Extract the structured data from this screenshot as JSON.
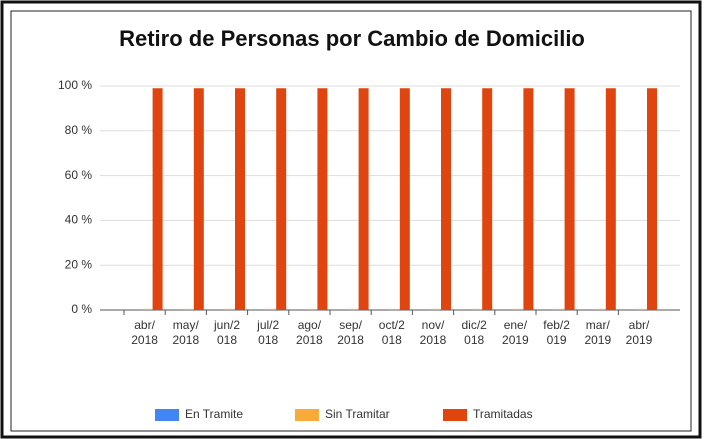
{
  "chart_data": {
    "type": "bar",
    "title": "Retiro de Personas por Cambio de Domicilio",
    "categories": [
      "abr/2018",
      "may/2018",
      "jun/2018",
      "jul/2018",
      "ago/2018",
      "sep/2018",
      "oct/2018",
      "nov/2018",
      "dic/2018",
      "ene/2019",
      "feb/2019",
      "mar/2019",
      "abr/2019"
    ],
    "series": [
      {
        "name": "En Tramite",
        "color": "#4285f4",
        "values": [
          0,
          0,
          0,
          0,
          0,
          0,
          0,
          0,
          0,
          0,
          0,
          0,
          0
        ]
      },
      {
        "name": "Sin Tramitar",
        "color": "#f9ab3a",
        "values": [
          0.5,
          0.5,
          0.5,
          0.5,
          0.5,
          0.5,
          0.5,
          0.5,
          0.5,
          0.5,
          0.5,
          0.5,
          0.5
        ]
      },
      {
        "name": "Tramitadas",
        "color": "#e0450f",
        "values": [
          99,
          99,
          99,
          99,
          99,
          99,
          99,
          99,
          99,
          99,
          99,
          99,
          99
        ]
      }
    ],
    "ylim": [
      0,
      100
    ],
    "yticks": [
      {
        "value": 0,
        "label": "0 %"
      },
      {
        "value": 20,
        "label": "20 %"
      },
      {
        "value": 40,
        "label": "40 %"
      },
      {
        "value": 60,
        "label": "60 %"
      },
      {
        "value": 80,
        "label": "80 %"
      },
      {
        "value": 100,
        "label": "100 %"
      }
    ],
    "grid": true,
    "legend": "bottom"
  }
}
